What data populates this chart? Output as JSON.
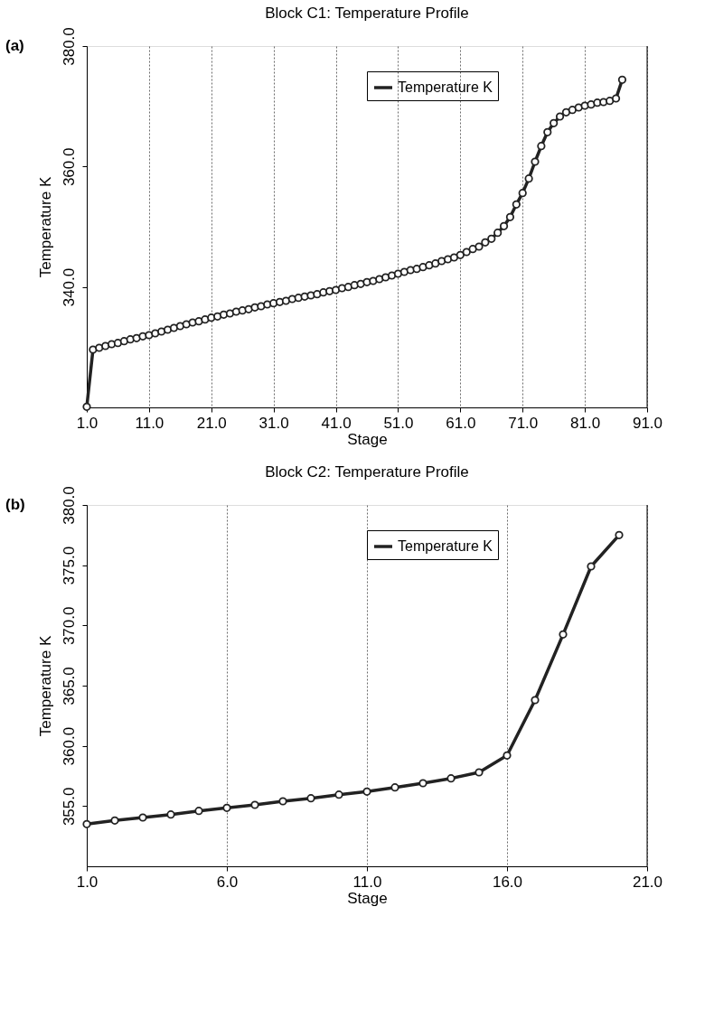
{
  "chart_data": [
    {
      "type": "line",
      "title": "Block C1: Temperature Profile",
      "xlabel": "Stage",
      "ylabel": "Temperature K",
      "annotations": [
        "(a)"
      ],
      "x": [
        1,
        2,
        3,
        4,
        5,
        6,
        7,
        8,
        9,
        10,
        11,
        12,
        13,
        14,
        15,
        16,
        17,
        18,
        19,
        20,
        21,
        22,
        23,
        24,
        25,
        26,
        27,
        28,
        29,
        30,
        31,
        32,
        33,
        34,
        35,
        36,
        37,
        38,
        39,
        40,
        41,
        42,
        43,
        44,
        45,
        46,
        47,
        48,
        49,
        50,
        51,
        52,
        53,
        54,
        55,
        56,
        57,
        58,
        59,
        60,
        61,
        62,
        63,
        64,
        65,
        66,
        67,
        68,
        69,
        70,
        71,
        72,
        73,
        74,
        75,
        76,
        77,
        78,
        79,
        80,
        81,
        82,
        83,
        84,
        85,
        86,
        87
      ],
      "series": [
        {
          "name": "Temperature K",
          "color": "#222222",
          "values": [
            320.1,
            329.6,
            329.9,
            330.2,
            330.5,
            330.7,
            331.0,
            331.3,
            331.5,
            331.8,
            332.0,
            332.3,
            332.6,
            332.9,
            333.2,
            333.5,
            333.8,
            334.1,
            334.3,
            334.6,
            334.9,
            335.1,
            335.4,
            335.6,
            335.9,
            336.1,
            336.3,
            336.6,
            336.8,
            337.1,
            337.3,
            337.5,
            337.7,
            338.0,
            338.2,
            338.4,
            338.6,
            338.8,
            339.1,
            339.3,
            339.5,
            339.8,
            340.0,
            340.3,
            340.5,
            340.8,
            341.0,
            341.3,
            341.6,
            341.9,
            342.2,
            342.5,
            342.8,
            343.0,
            343.3,
            343.6,
            343.9,
            344.3,
            344.6,
            344.9,
            345.3,
            345.8,
            346.3,
            346.7,
            347.4,
            348.0,
            349.0,
            350.1,
            351.6,
            353.7,
            355.6,
            358.0,
            360.8,
            363.4,
            365.7,
            367.2,
            368.3,
            369.0,
            369.4,
            369.8,
            370.1,
            370.3,
            370.6,
            370.7,
            370.9,
            371.3,
            374.4
          ]
        }
      ],
      "xlim": [
        1,
        91
      ],
      "xticks": [
        {
          "value": 1,
          "label": "1.0"
        },
        {
          "value": 11,
          "label": "11.0"
        },
        {
          "value": 21,
          "label": "21.0"
        },
        {
          "value": 31,
          "label": "31.0"
        },
        {
          "value": 41,
          "label": "41.0"
        },
        {
          "value": 51,
          "label": "51.0"
        },
        {
          "value": 61,
          "label": "61.0"
        },
        {
          "value": 71,
          "label": "71.0"
        },
        {
          "value": 81,
          "label": "81.0"
        },
        {
          "value": 91,
          "label": "91.0"
        }
      ],
      "ylim": [
        320,
        380
      ],
      "yticks": [
        {
          "value": 340,
          "label": "340.0"
        },
        {
          "value": 360,
          "label": "360.0"
        },
        {
          "value": 380,
          "label": "380.0"
        }
      ],
      "grid": "x",
      "legend": "top right",
      "marker": "circle",
      "line_style": "solid"
    },
    {
      "type": "line",
      "title": "Block C2: Temperature Profile",
      "xlabel": "Stage",
      "ylabel": "Temperature K",
      "annotations": [
        "(b)"
      ],
      "x": [
        1,
        2,
        3,
        4,
        5,
        6,
        7,
        8,
        9,
        10,
        11,
        12,
        13,
        14,
        15,
        16,
        17,
        18,
        19,
        20
      ],
      "series": [
        {
          "name": "Temperature K",
          "color": "#222222",
          "values": [
            353.5,
            353.8,
            354.05,
            354.3,
            354.6,
            354.85,
            355.1,
            355.4,
            355.65,
            355.95,
            356.2,
            356.55,
            356.9,
            357.3,
            357.8,
            359.2,
            363.8,
            369.25,
            374.9,
            377.5
          ]
        }
      ],
      "xlim": [
        1,
        21
      ],
      "xticks": [
        {
          "value": 1,
          "label": "1.0"
        },
        {
          "value": 6,
          "label": "6.0"
        },
        {
          "value": 11,
          "label": "11.0"
        },
        {
          "value": 16,
          "label": "16.0"
        },
        {
          "value": 21,
          "label": "21.0"
        }
      ],
      "ylim": [
        350,
        380
      ],
      "yticks": [
        {
          "value": 355,
          "label": "355.0"
        },
        {
          "value": 360,
          "label": "360.0"
        },
        {
          "value": 365,
          "label": "365.0"
        },
        {
          "value": 370,
          "label": "370.0"
        },
        {
          "value": 375,
          "label": "375.0"
        },
        {
          "value": 380,
          "label": "380.0"
        }
      ],
      "grid": "x",
      "legend": "top right",
      "marker": "circle",
      "line_style": "solid"
    }
  ]
}
